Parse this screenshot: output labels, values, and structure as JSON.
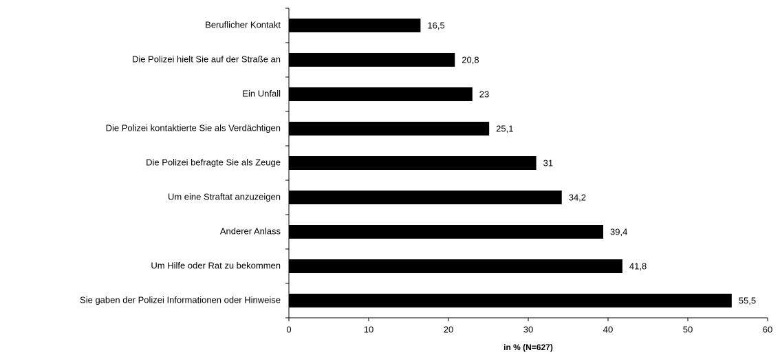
{
  "chart_data": {
    "type": "bar",
    "orientation": "horizontal",
    "x_label": "in % (N=627)",
    "categories": [
      "Beruflicher Kontakt",
      "Die Polizei hielt Sie auf der Straße an",
      "Ein Unfall",
      "Die Polizei kontaktierte Sie als Verdächtigen",
      "Die Polizei befragte Sie als Zeuge",
      "Um eine Straftat anzuzeigen",
      "Anderer Anlass",
      "Um Hilfe oder Rat zu bekommen",
      "Sie gaben der Polizei Informationen oder Hinweise"
    ],
    "values": [
      16.5,
      20.8,
      23,
      25.1,
      31,
      34.2,
      39.4,
      41.8,
      55.5
    ],
    "value_labels": [
      "16,5",
      "20,8",
      "23",
      "25,1",
      "31",
      "34,2",
      "39,4",
      "41,8",
      "55,5"
    ],
    "color": "#000000",
    "xlim": [
      0,
      60
    ],
    "xticks": [
      0,
      10,
      20,
      30,
      40,
      50,
      60
    ],
    "grid": false
  }
}
